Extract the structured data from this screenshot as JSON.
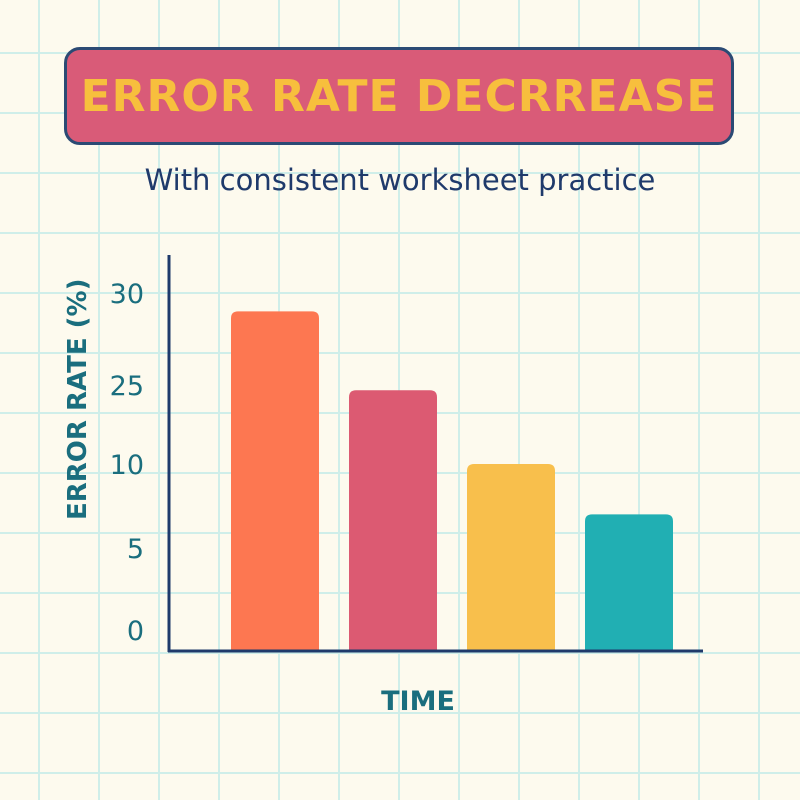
{
  "chart_data": {
    "type": "bar",
    "title": "ERROR RATE DECRREASE",
    "subtitle": "With consistent worksheet practice",
    "xlabel": "TIME",
    "ylabel": "ERROR RATE (%)",
    "y_ticks": [
      "30",
      "25",
      "10",
      "5",
      "0"
    ],
    "values": [
      29,
      24,
      10,
      7
    ],
    "colors": [
      "#fd7751",
      "#dc5a72",
      "#f8bf4c",
      "#21afb3"
    ],
    "grid": true
  }
}
